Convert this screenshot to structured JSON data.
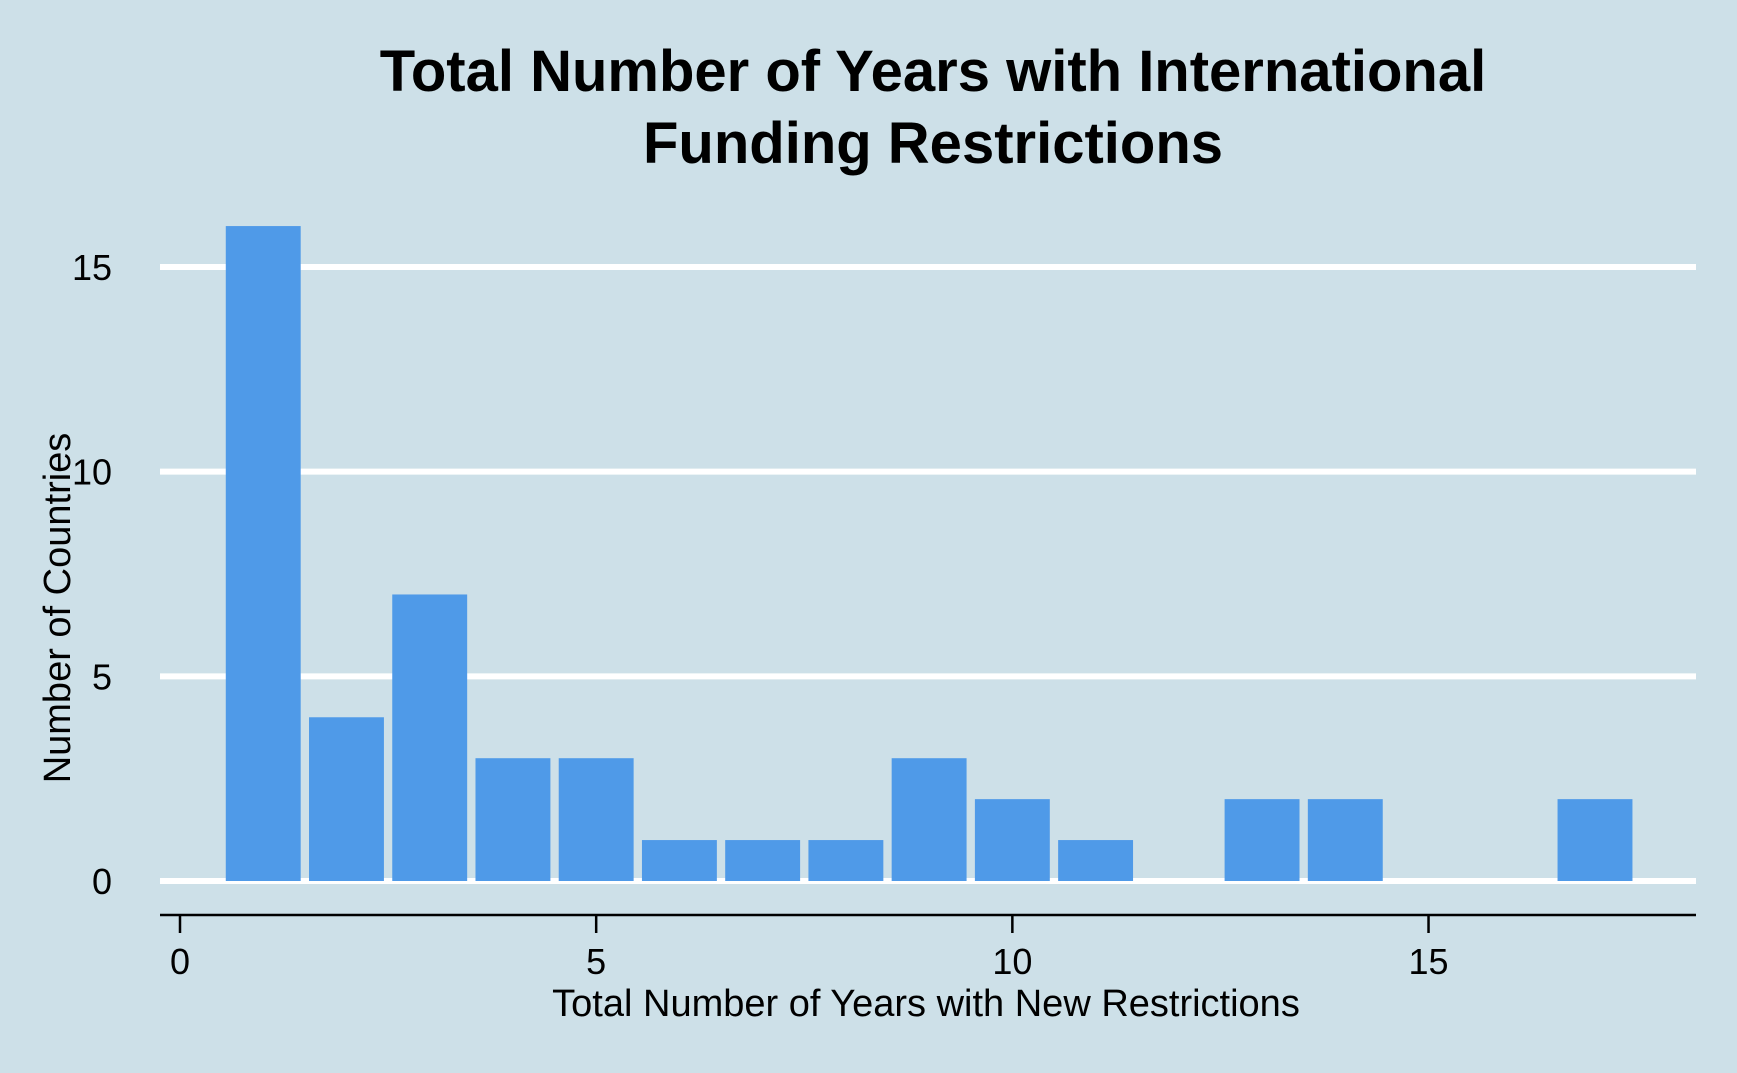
{
  "chart_data": {
    "type": "bar",
    "title_lines": [
      "Total Number of Years with International",
      "Funding Restrictions"
    ],
    "xlabel": "Total Number of Years with New Restrictions",
    "ylabel": "Number of Countries",
    "x": [
      1,
      2,
      3,
      4,
      5,
      6,
      7,
      8,
      9,
      10,
      11,
      13,
      14,
      17
    ],
    "values": [
      16,
      4,
      7,
      3,
      3,
      1,
      1,
      1,
      3,
      2,
      1,
      2,
      2,
      2
    ],
    "xlim": [
      -0.5,
      18.5
    ],
    "ylim": [
      -0.8,
      17.2
    ],
    "xticks": [
      0,
      5,
      10,
      15
    ],
    "yticks": [
      0,
      5,
      10,
      15
    ],
    "grid": "horizontal",
    "bar_color": "#4f9ae8",
    "grid_color": "#ffffff",
    "background_color": "#cde0e8"
  }
}
